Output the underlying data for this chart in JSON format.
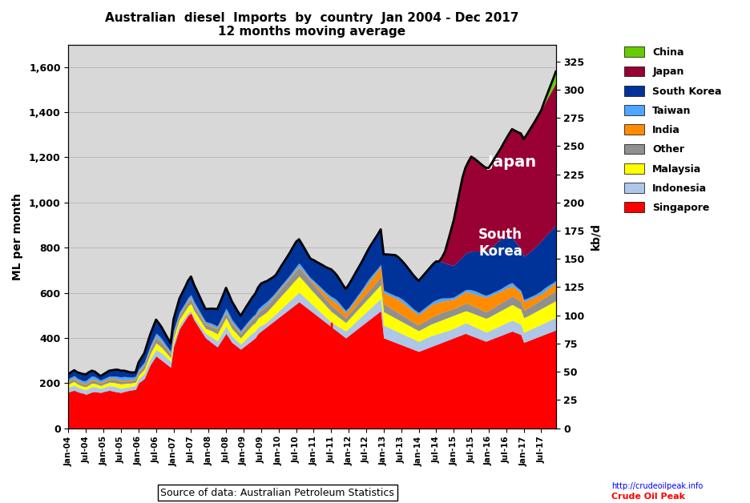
{
  "title_line1": "Australian  diesel  Imports  by  country  Jan 2004 - Dec 2017",
  "title_line2": "12 months moving average",
  "ylabel_left": "ML per month",
  "ylabel_right": "kb/d",
  "ylim_left": [
    0,
    1700
  ],
  "ylim_right": [
    0,
    340
  ],
  "yticks_left": [
    0,
    200,
    400,
    600,
    800,
    1000,
    1200,
    1400,
    1600
  ],
  "yticks_right": [
    0,
    25,
    50,
    75,
    100,
    125,
    150,
    175,
    200,
    225,
    250,
    275,
    300,
    325
  ],
  "source_text": "Source of data: Australian Petroleum Statistics",
  "countries": [
    "Singapore",
    "Indonesia",
    "Malaysia",
    "Other",
    "India",
    "Taiwan",
    "South Korea",
    "Japan",
    "China"
  ],
  "colors": {
    "Singapore": "#FF0000",
    "Indonesia": "#AEC6E8",
    "Malaysia": "#FFFF00",
    "Other": "#909090",
    "India": "#FF8C00",
    "Taiwan": "#4DA6FF",
    "South Korea": "#003399",
    "Japan": "#990033",
    "China": "#66CC00"
  },
  "n_months": 168,
  "start_year": 2004,
  "start_month": 1,
  "data": {
    "Singapore": [
      160,
      165,
      168,
      162,
      158,
      155,
      150,
      155,
      160,
      162,
      160,
      158,
      162,
      165,
      168,
      165,
      162,
      160,
      158,
      162,
      165,
      168,
      170,
      172,
      200,
      210,
      220,
      250,
      280,
      300,
      320,
      310,
      300,
      290,
      280,
      270,
      360,
      400,
      440,
      460,
      480,
      500,
      510,
      480,
      460,
      440,
      420,
      400,
      390,
      380,
      370,
      360,
      380,
      400,
      420,
      400,
      380,
      370,
      360,
      350,
      360,
      370,
      380,
      390,
      400,
      420,
      430,
      440,
      450,
      460,
      470,
      480,
      490,
      500,
      510,
      520,
      530,
      540,
      550,
      560,
      550,
      540,
      530,
      520,
      510,
      500,
      490,
      480,
      470,
      460,
      450,
      440,
      430,
      420,
      410,
      400,
      410,
      420,
      430,
      440,
      450,
      460,
      470,
      480,
      490,
      500,
      510,
      520,
      400,
      395,
      390,
      385,
      380,
      375,
      370,
      365,
      360,
      355,
      350,
      345,
      340,
      345,
      350,
      355,
      360,
      365,
      370,
      375,
      380,
      385,
      390,
      395,
      400,
      405,
      410,
      415,
      420,
      415,
      410,
      405,
      400,
      395,
      390,
      385,
      390,
      395,
      400,
      405,
      410,
      415,
      420,
      425,
      430,
      425,
      420,
      415,
      380,
      385,
      390,
      395,
      400,
      405,
      410,
      415,
      420,
      425,
      430,
      435
    ],
    "Indonesia": [
      20,
      21,
      22,
      20,
      19,
      18,
      20,
      22,
      23,
      22,
      20,
      18,
      18,
      19,
      20,
      21,
      22,
      20,
      18,
      17,
      16,
      15,
      16,
      17,
      18,
      20,
      22,
      24,
      25,
      26,
      28,
      30,
      32,
      30,
      28,
      25,
      22,
      20,
      18,
      16,
      14,
      12,
      10,
      12,
      14,
      16,
      18,
      20,
      22,
      24,
      25,
      26,
      28,
      30,
      32,
      30,
      28,
      26,
      24,
      22,
      25,
      28,
      30,
      32,
      30,
      28,
      25,
      22,
      20,
      22,
      24,
      26,
      28,
      30,
      32,
      34,
      36,
      38,
      40,
      42,
      40,
      38,
      36,
      34,
      32,
      30,
      28,
      26,
      24,
      22,
      20,
      22,
      24,
      26,
      28,
      30,
      32,
      34,
      36,
      38,
      40,
      42,
      44,
      46,
      48,
      50,
      52,
      54,
      56,
      55,
      54,
      53,
      52,
      51,
      50,
      49,
      48,
      47,
      46,
      45,
      44,
      45,
      46,
      47,
      48,
      47,
      46,
      45,
      44,
      43,
      42,
      41,
      42,
      43,
      44,
      45,
      46,
      47,
      46,
      45,
      44,
      43,
      42,
      41,
      40,
      41,
      42,
      43,
      44,
      45,
      46,
      47,
      48,
      47,
      46,
      45,
      44,
      45,
      46,
      47,
      48,
      49,
      50,
      51,
      52,
      53,
      54,
      55
    ],
    "Malaysia": [
      15,
      16,
      17,
      15,
      14,
      13,
      14,
      15,
      16,
      15,
      14,
      13,
      14,
      15,
      16,
      17,
      18,
      19,
      20,
      19,
      18,
      17,
      16,
      15,
      16,
      18,
      20,
      22,
      25,
      28,
      30,
      28,
      25,
      22,
      20,
      18,
      20,
      22,
      24,
      26,
      28,
      30,
      32,
      30,
      28,
      26,
      24,
      22,
      25,
      28,
      30,
      32,
      34,
      36,
      38,
      36,
      34,
      32,
      30,
      28,
      30,
      32,
      34,
      36,
      38,
      40,
      42,
      44,
      46,
      48,
      50,
      52,
      55,
      58,
      60,
      62,
      65,
      68,
      70,
      72,
      70,
      68,
      65,
      62,
      60,
      58,
      56,
      54,
      52,
      50,
      48,
      46,
      44,
      42,
      40,
      38,
      40,
      42,
      44,
      46,
      48,
      50,
      52,
      54,
      56,
      58,
      60,
      62,
      60,
      59,
      58,
      57,
      56,
      55,
      54,
      53,
      52,
      51,
      50,
      49,
      48,
      49,
      50,
      51,
      52,
      53,
      54,
      55,
      56,
      57,
      58,
      59,
      58,
      57,
      56,
      55,
      54,
      55,
      56,
      57,
      58,
      59,
      60,
      61,
      62,
      63,
      64,
      65,
      66,
      67,
      68,
      69,
      70,
      69,
      68,
      67,
      66,
      65,
      66,
      67,
      68,
      69,
      70,
      71,
      72,
      73,
      74,
      75
    ],
    "Other": [
      10,
      10,
      11,
      10,
      10,
      9,
      10,
      11,
      12,
      11,
      10,
      9,
      10,
      11,
      12,
      13,
      14,
      13,
      12,
      11,
      10,
      9,
      10,
      11,
      12,
      14,
      16,
      18,
      20,
      22,
      24,
      22,
      20,
      18,
      16,
      14,
      15,
      16,
      17,
      18,
      19,
      20,
      21,
      20,
      19,
      18,
      17,
      16,
      17,
      18,
      19,
      20,
      21,
      22,
      23,
      22,
      21,
      20,
      19,
      18,
      19,
      20,
      21,
      22,
      23,
      24,
      25,
      26,
      27,
      28,
      29,
      30,
      31,
      32,
      33,
      34,
      35,
      36,
      37,
      38,
      37,
      36,
      35,
      34,
      33,
      32,
      31,
      30,
      29,
      28,
      27,
      26,
      25,
      24,
      23,
      22,
      23,
      24,
      25,
      26,
      27,
      28,
      29,
      30,
      31,
      32,
      33,
      34,
      35,
      34,
      33,
      32,
      31,
      30,
      29,
      28,
      27,
      26,
      25,
      24,
      25,
      26,
      27,
      28,
      29,
      30,
      31,
      32,
      33,
      32,
      31,
      30,
      29,
      30,
      31,
      32,
      33,
      34,
      33,
      32,
      31,
      30,
      29,
      28,
      29,
      30,
      31,
      32,
      33,
      34,
      35,
      36,
      37,
      36,
      35,
      34,
      33,
      34,
      35,
      36,
      37,
      38,
      39,
      40,
      41,
      42,
      43,
      44
    ],
    "India": [
      5,
      5,
      5,
      5,
      5,
      5,
      5,
      5,
      5,
      5,
      5,
      5,
      5,
      5,
      5,
      5,
      5,
      5,
      5,
      5,
      5,
      5,
      5,
      5,
      5,
      5,
      5,
      5,
      5,
      5,
      5,
      5,
      5,
      5,
      5,
      5,
      5,
      5,
      5,
      5,
      5,
      5,
      5,
      5,
      5,
      5,
      5,
      5,
      5,
      5,
      5,
      5,
      5,
      5,
      5,
      5,
      5,
      5,
      5,
      5,
      5,
      5,
      5,
      5,
      5,
      5,
      5,
      5,
      5,
      5,
      5,
      5,
      5,
      5,
      5,
      5,
      5,
      5,
      5,
      5,
      5,
      5,
      5,
      5,
      10,
      12,
      15,
      18,
      20,
      22,
      25,
      28,
      30,
      28,
      25,
      22,
      20,
      22,
      25,
      28,
      30,
      32,
      35,
      38,
      40,
      42,
      44,
      46,
      50,
      52,
      54,
      56,
      58,
      60,
      58,
      56,
      54,
      52,
      50,
      48,
      46,
      48,
      50,
      52,
      54,
      56,
      54,
      52,
      50,
      48,
      46,
      44,
      42,
      44,
      46,
      48,
      50,
      52,
      54,
      56,
      58,
      60,
      62,
      64,
      62,
      60,
      58,
      56,
      54,
      52,
      50,
      48,
      46,
      44,
      42,
      40,
      38,
      36,
      34,
      32,
      30,
      28,
      26,
      28,
      30,
      32,
      34,
      36
    ],
    "Taiwan": [
      10,
      10,
      10,
      10,
      10,
      10,
      12,
      14,
      15,
      14,
      12,
      10,
      10,
      10,
      10,
      10,
      10,
      12,
      14,
      15,
      14,
      12,
      10,
      10,
      10,
      10,
      10,
      10,
      10,
      12,
      14,
      15,
      14,
      12,
      10,
      10,
      10,
      10,
      10,
      10,
      10,
      12,
      14,
      15,
      14,
      12,
      10,
      10,
      10,
      10,
      10,
      10,
      10,
      12,
      14,
      15,
      14,
      12,
      10,
      10,
      10,
      10,
      10,
      10,
      10,
      12,
      14,
      15,
      14,
      12,
      10,
      10,
      10,
      10,
      10,
      10,
      10,
      12,
      14,
      15,
      14,
      12,
      10,
      10,
      10,
      10,
      10,
      10,
      10,
      12,
      14,
      15,
      14,
      12,
      10,
      10,
      10,
      10,
      10,
      10,
      10,
      12,
      14,
      15,
      14,
      12,
      10,
      10,
      10,
      10,
      10,
      10,
      10,
      12,
      14,
      15,
      14,
      12,
      10,
      10,
      10,
      10,
      10,
      10,
      10,
      12,
      14,
      15,
      14,
      12,
      10,
      10,
      10,
      10,
      10,
      10,
      10,
      12,
      14,
      15,
      14,
      12,
      10,
      10,
      10,
      10,
      10,
      10,
      10,
      12,
      14,
      15,
      14,
      12,
      10,
      10,
      10,
      10,
      10,
      10,
      10,
      12,
      14,
      15,
      14,
      12,
      10,
      10
    ],
    "South Korea": [
      20,
      22,
      24,
      26,
      28,
      30,
      28,
      26,
      24,
      22,
      20,
      18,
      20,
      22,
      24,
      26,
      28,
      30,
      28,
      26,
      24,
      22,
      20,
      18,
      30,
      35,
      40,
      45,
      50,
      55,
      60,
      55,
      50,
      45,
      40,
      35,
      50,
      55,
      60,
      65,
      70,
      75,
      80,
      75,
      70,
      65,
      60,
      55,
      60,
      65,
      70,
      75,
      80,
      85,
      90,
      85,
      80,
      75,
      70,
      65,
      70,
      75,
      80,
      85,
      90,
      95,
      100,
      95,
      90,
      85,
      80,
      75,
      80,
      85,
      90,
      95,
      100,
      105,
      110,
      105,
      100,
      95,
      90,
      85,
      90,
      95,
      100,
      105,
      110,
      115,
      120,
      115,
      110,
      105,
      100,
      95,
      100,
      105,
      110,
      115,
      120,
      125,
      130,
      135,
      140,
      145,
      150,
      155,
      160,
      165,
      170,
      175,
      180,
      175,
      170,
      165,
      160,
      155,
      150,
      145,
      140,
      145,
      150,
      155,
      160,
      165,
      170,
      165,
      160,
      155,
      150,
      145,
      140,
      145,
      150,
      155,
      160,
      165,
      170,
      175,
      180,
      185,
      190,
      195,
      200,
      205,
      210,
      215,
      220,
      215,
      210,
      205,
      200,
      195,
      190,
      185,
      190,
      195,
      200,
      205,
      210,
      215,
      220,
      225,
      230,
      235,
      240,
      245
    ],
    "Japan": [
      0,
      0,
      0,
      0,
      0,
      0,
      0,
      0,
      0,
      0,
      0,
      0,
      0,
      0,
      0,
      0,
      0,
      0,
      0,
      0,
      0,
      0,
      0,
      0,
      0,
      0,
      0,
      0,
      0,
      0,
      0,
      0,
      0,
      0,
      0,
      0,
      0,
      0,
      0,
      0,
      0,
      0,
      0,
      0,
      0,
      0,
      0,
      0,
      0,
      0,
      0,
      0,
      0,
      0,
      0,
      0,
      0,
      0,
      0,
      0,
      0,
      0,
      0,
      0,
      0,
      0,
      0,
      0,
      0,
      0,
      0,
      0,
      0,
      0,
      0,
      0,
      0,
      0,
      0,
      0,
      0,
      0,
      0,
      0,
      0,
      0,
      0,
      0,
      0,
      0,
      0,
      0,
      0,
      0,
      0,
      0,
      0,
      0,
      0,
      0,
      0,
      0,
      0,
      0,
      0,
      0,
      0,
      0,
      0,
      0,
      0,
      0,
      0,
      0,
      0,
      0,
      0,
      0,
      0,
      0,
      0,
      0,
      0,
      0,
      0,
      0,
      0,
      0,
      20,
      50,
      100,
      150,
      200,
      250,
      300,
      350,
      380,
      400,
      420,
      410,
      400,
      390,
      380,
      370,
      360,
      370,
      380,
      390,
      400,
      420,
      440,
      460,
      480,
      490,
      500,
      510,
      520,
      530,
      540,
      550,
      560,
      570,
      580,
      590,
      600,
      610,
      620,
      630
    ],
    "China": [
      0,
      0,
      0,
      0,
      0,
      0,
      0,
      0,
      0,
      0,
      0,
      0,
      0,
      0,
      0,
      0,
      0,
      0,
      0,
      0,
      0,
      0,
      0,
      0,
      0,
      0,
      0,
      0,
      0,
      0,
      0,
      0,
      0,
      0,
      0,
      0,
      0,
      0,
      0,
      0,
      0,
      0,
      0,
      0,
      0,
      0,
      0,
      0,
      0,
      0,
      0,
      0,
      0,
      0,
      0,
      0,
      0,
      0,
      0,
      0,
      0,
      0,
      0,
      0,
      0,
      0,
      0,
      0,
      0,
      0,
      0,
      0,
      0,
      0,
      0,
      0,
      0,
      0,
      0,
      0,
      0,
      0,
      0,
      0,
      0,
      0,
      0,
      0,
      0,
      0,
      0,
      0,
      0,
      0,
      0,
      0,
      0,
      0,
      0,
      0,
      0,
      0,
      0,
      0,
      0,
      0,
      0,
      0,
      0,
      0,
      0,
      0,
      0,
      0,
      0,
      0,
      0,
      0,
      0,
      0,
      0,
      0,
      0,
      0,
      0,
      0,
      0,
      0,
      0,
      0,
      0,
      0,
      0,
      0,
      0,
      0,
      0,
      0,
      0,
      0,
      0,
      0,
      0,
      0,
      0,
      0,
      0,
      0,
      0,
      0,
      0,
      0,
      0,
      0,
      0,
      0,
      0,
      0,
      0,
      0,
      0,
      0,
      0,
      10,
      20,
      30,
      40,
      50
    ]
  }
}
